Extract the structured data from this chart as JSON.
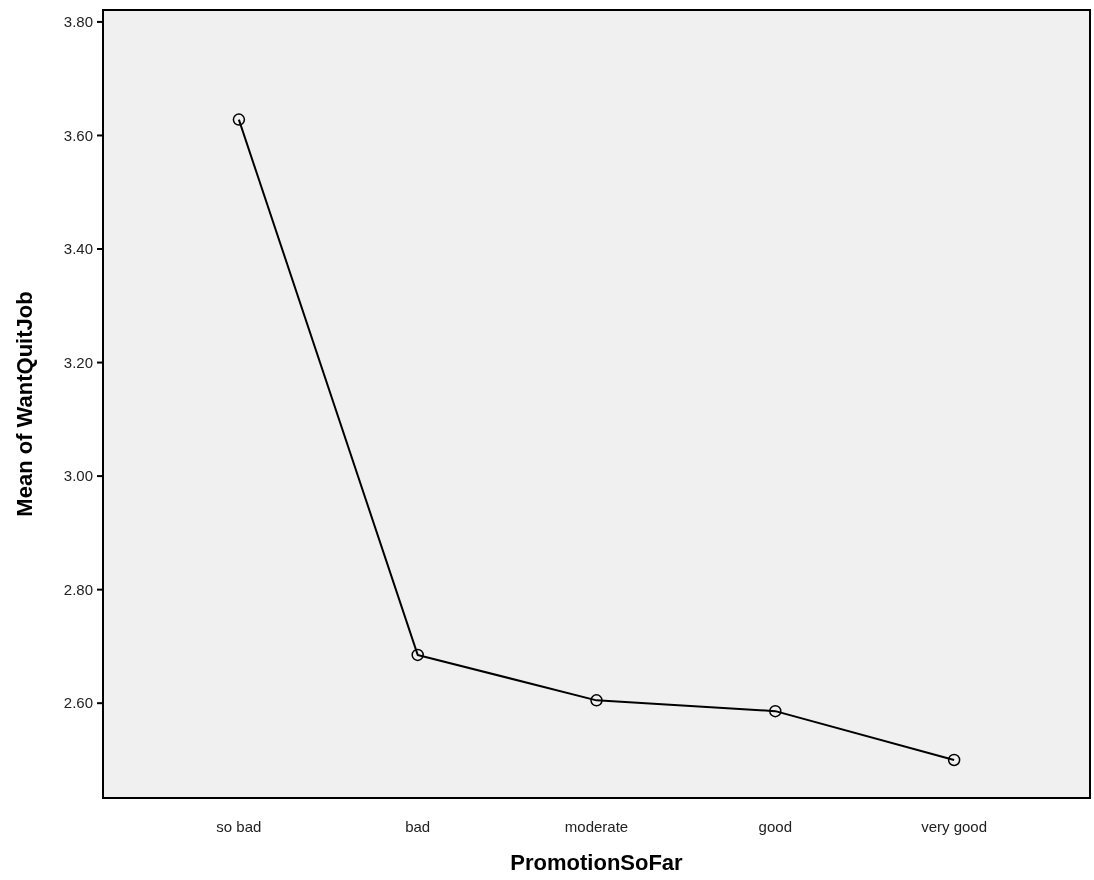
{
  "chart_data": {
    "type": "line",
    "xlabel": "PromotionSoFar",
    "ylabel": "Mean of WantQuitJob",
    "categories": [
      "so bad",
      "bad",
      "moderate",
      "good",
      "very good"
    ],
    "series": [
      {
        "color": "#000000",
        "values": [
          3.628,
          2.685,
          2.605,
          2.586,
          2.5
        ]
      }
    ],
    "ylim": [
      2.433,
      3.821
    ],
    "yticks": [
      {
        "value": 2.6,
        "label": "2.60"
      },
      {
        "value": 2.8,
        "label": "2.80"
      },
      {
        "value": 3.0,
        "label": "3.00"
      },
      {
        "value": 3.2,
        "label": "3.20"
      },
      {
        "value": 3.4,
        "label": "3.40"
      },
      {
        "value": 3.6,
        "label": "3.60"
      },
      {
        "value": 3.8,
        "label": "3.80"
      }
    ],
    "marker": "circle",
    "line_style": "solid",
    "grid": false
  }
}
